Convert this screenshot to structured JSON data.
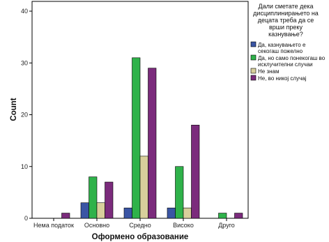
{
  "chart_data": {
    "type": "bar",
    "xlabel": "Оформено образование",
    "ylabel": "Count",
    "ylim": [
      0,
      40
    ],
    "yticks": [
      0,
      10,
      20,
      30,
      40
    ],
    "grid": false,
    "legend_position": "right",
    "legend_title_lines": [
      "Дали сметате дека",
      "дисциплинирањето на",
      "децата треба да се",
      "врши преку",
      "казнување?"
    ],
    "categories": [
      "Нема податок",
      "Основно",
      "Средно",
      "Високо",
      "Друго"
    ],
    "series": [
      {
        "name_lines": [
          "Да, казнувањето е",
          "секогаш пожелно"
        ],
        "color": "#3a55a4",
        "values": [
          0,
          3,
          2,
          2,
          0
        ]
      },
      {
        "name_lines": [
          "Да, но само понекогаш во",
          "исклучителни случаи"
        ],
        "color": "#2fb24a",
        "values": [
          0,
          8,
          31,
          10,
          1
        ]
      },
      {
        "name_lines": [
          "Не знам"
        ],
        "color": "#d8cf9c",
        "values": [
          0,
          3,
          12,
          2,
          0
        ]
      },
      {
        "name_lines": [
          "Не, во никој случај"
        ],
        "color": "#7b2b7c",
        "values": [
          1,
          7,
          29,
          18,
          1
        ]
      }
    ]
  }
}
